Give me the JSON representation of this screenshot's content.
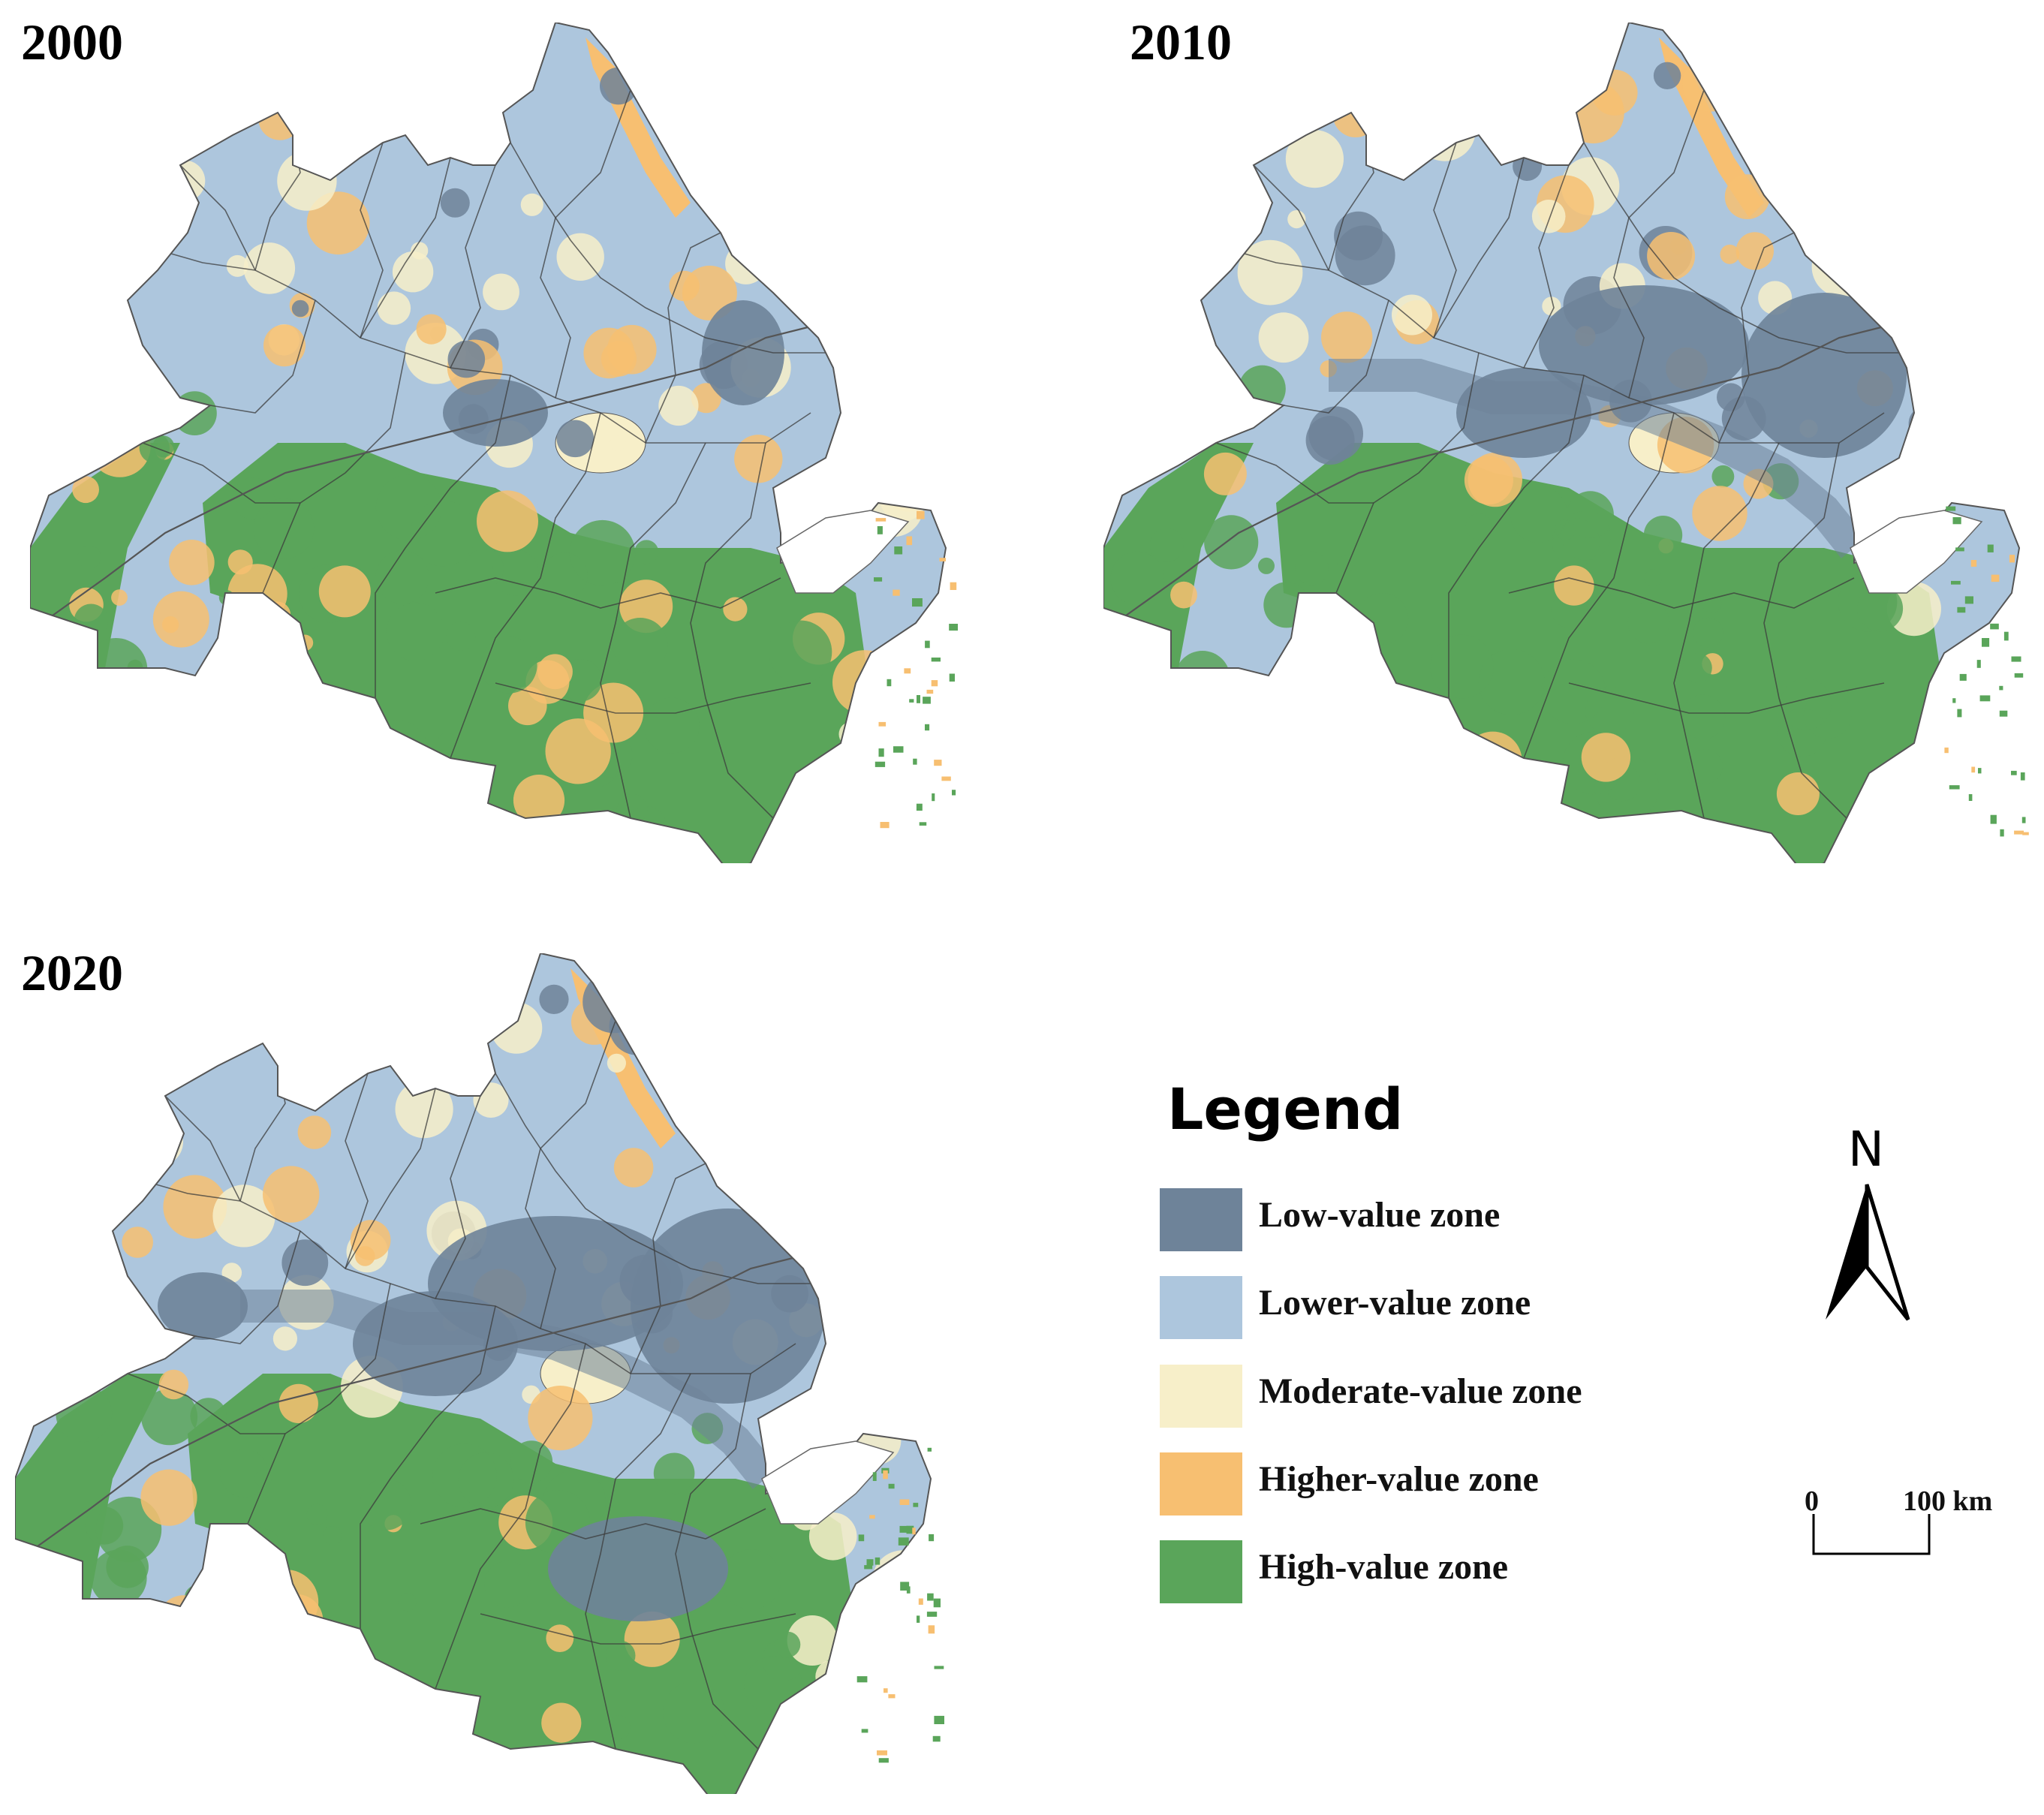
{
  "panels": [
    {
      "id": "2000",
      "title": "2000"
    },
    {
      "id": "2010",
      "title": "2010"
    },
    {
      "id": "2020",
      "title": "2020"
    }
  ],
  "legend": {
    "title": "Legend",
    "items": [
      {
        "label": "Low-value zone",
        "color": "#6e8399"
      },
      {
        "label": "Lower-value zone",
        "color": "#adc6dd"
      },
      {
        "label": "Moderate-value zone",
        "color": "#f7efc9"
      },
      {
        "label": "Higher-value zone",
        "color": "#f7bf71"
      },
      {
        "label": "High-value zone",
        "color": "#5aa55a"
      }
    ]
  },
  "north_arrow": {
    "label": "N"
  },
  "scale_bar": {
    "start": "0",
    "end": "100 km"
  }
}
